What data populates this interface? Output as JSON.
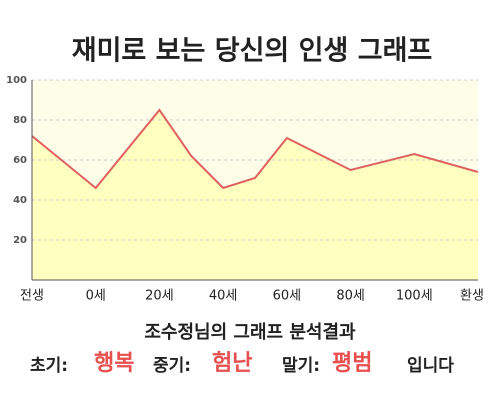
{
  "chart_data": {
    "type": "area",
    "title": "재미로 보는 당신의 인생 그래프",
    "x": [
      -20,
      0,
      20,
      30,
      40,
      50,
      60,
      70,
      80,
      100,
      120
    ],
    "values": [
      72,
      46,
      85,
      62,
      46,
      51,
      71,
      63,
      55,
      63,
      54
    ],
    "color": "#e06060",
    "fill": "#ffffc0",
    "xlim": [
      -20,
      120
    ],
    "xticks": [
      {
        "value": -20,
        "label": "전생"
      },
      {
        "value": 0,
        "label": "0세"
      },
      {
        "value": 20,
        "label": "20세"
      },
      {
        "value": 40,
        "label": "40세"
      },
      {
        "value": 60,
        "label": "60세"
      },
      {
        "value": 80,
        "label": "80세"
      },
      {
        "value": 100,
        "label": "100세"
      },
      {
        "value": 120,
        "label": "환생"
      }
    ],
    "ylim": [
      0,
      100
    ],
    "yticks": [
      20,
      40,
      60,
      80,
      100
    ],
    "grid": true
  },
  "result": {
    "heading": "조수정님의 그래프 분석결과",
    "items": [
      {
        "label": "초기:",
        "value": "행복"
      },
      {
        "label": "중기:",
        "value": "험난"
      },
      {
        "label": "말기:",
        "value": "평범"
      }
    ],
    "ending": "입니다"
  }
}
